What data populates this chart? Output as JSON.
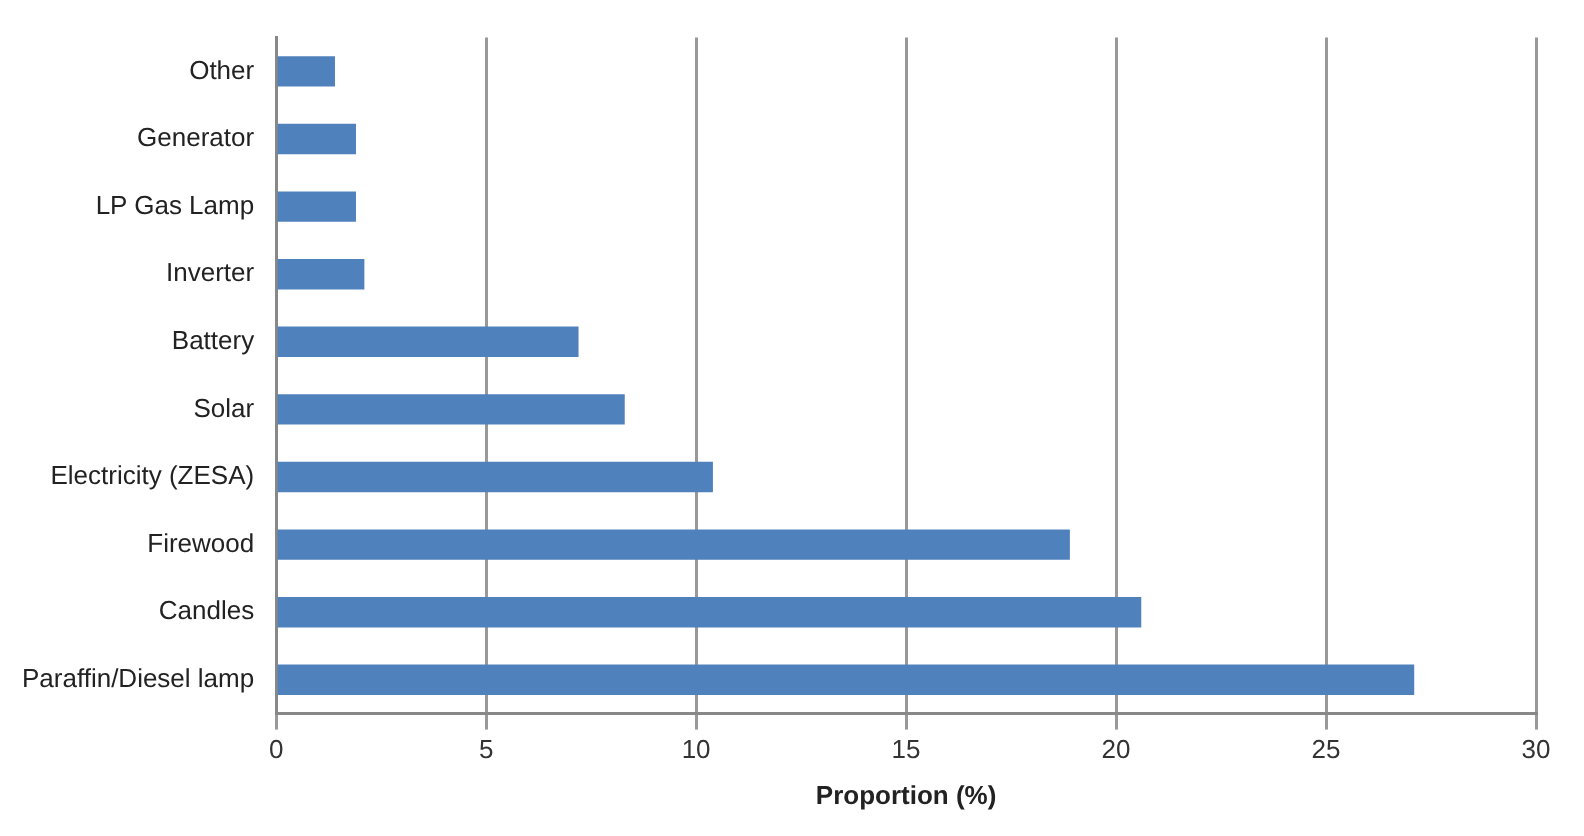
{
  "chart_data": {
    "type": "bar",
    "orientation": "horizontal",
    "xlabel": "Proportion (%)",
    "categories": [
      "Other",
      "Generator",
      "LP Gas Lamp",
      "Inverter",
      "Battery",
      "Solar",
      "Electricity (ZESA)",
      "Firewood",
      "Candles",
      "Paraffin/Diesel lamp"
    ],
    "values": [
      1.4,
      1.9,
      1.9,
      2.1,
      7.2,
      8.3,
      10.4,
      18.9,
      20.6,
      27.1
    ],
    "color": "#4f81bd",
    "xlim": [
      0,
      30
    ],
    "xticks": [
      0,
      5,
      10,
      15,
      20,
      25,
      30
    ],
    "grid": "x",
    "legend": false
  }
}
